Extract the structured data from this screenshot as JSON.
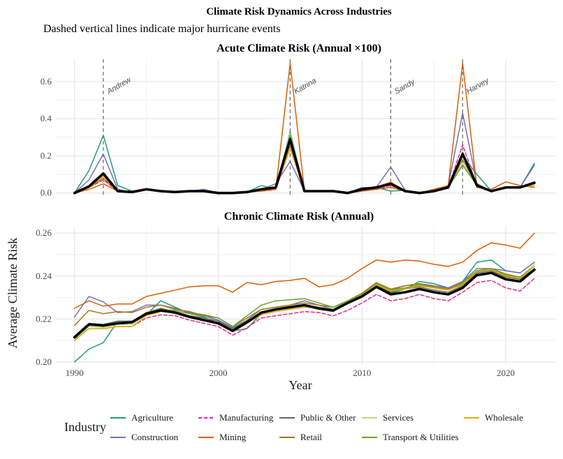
{
  "header": {
    "title": "Climate Risk Dynamics Across Industries",
    "subtitle": "Dashed vertical lines indicate major hurricane events"
  },
  "xlabel": "Year",
  "ylabel": "Average Climate Risk",
  "legend": {
    "title": "Industry",
    "placement": "bottom"
  },
  "chart_data": [
    {
      "type": "line",
      "title": "Acute Climate Risk (Annual ×100)",
      "x": [
        1990,
        1991,
        1992,
        1993,
        1994,
        1995,
        1996,
        1997,
        1998,
        1999,
        2000,
        2001,
        2002,
        2003,
        2004,
        2005,
        2006,
        2007,
        2008,
        2009,
        2010,
        2011,
        2012,
        2013,
        2014,
        2015,
        2016,
        2017,
        2018,
        2019,
        2020,
        2021,
        2022
      ],
      "xlim": [
        1988.7,
        2023.5
      ],
      "ylim": [
        -0.02,
        0.72
      ],
      "yticks": [
        0.0,
        0.2,
        0.4,
        0.6
      ],
      "ytick_labels": [
        "0.0",
        "0.2",
        "0.4",
        "0.6"
      ],
      "grid": true,
      "events": [
        {
          "year": 1992,
          "label": "Andrew"
        },
        {
          "year": 2005,
          "label": "Katrina"
        },
        {
          "year": 2012,
          "label": "Sandy"
        },
        {
          "year": 2017,
          "label": "Harvey"
        }
      ],
      "series": [
        {
          "name": "Agriculture",
          "color": "#1b9e77",
          "dashed": false,
          "values": [
            0,
            0.12,
            0.31,
            0.04,
            0.01,
            0.02,
            0.01,
            0.005,
            0.01,
            0.015,
            0,
            0,
            0.005,
            0.04,
            0.02,
            0.33,
            0.01,
            0.01,
            0.01,
            0,
            0.01,
            0.03,
            0.01,
            0.015,
            0,
            0.01,
            0.03,
            0.2,
            0.1,
            0.01,
            0.03,
            0.03,
            0.16
          ]
        },
        {
          "name": "Construction",
          "color": "#7570b3",
          "dashed": false,
          "values": [
            0,
            0.07,
            0.21,
            0.02,
            0.005,
            0.02,
            0.01,
            0.005,
            0.01,
            0.02,
            0,
            0,
            0.005,
            0.02,
            0.05,
            0.17,
            0.01,
            0.01,
            0.01,
            0,
            0.03,
            0.03,
            0.14,
            0.015,
            0,
            0.01,
            0.04,
            0.43,
            0.05,
            0.01,
            0.03,
            0.03,
            0.15
          ]
        },
        {
          "name": "Manufacturing",
          "color": "#e7298a",
          "dashed": true,
          "values": [
            0,
            0.03,
            0.07,
            0.01,
            0.005,
            0.02,
            0.01,
            0.005,
            0.01,
            0.01,
            0,
            0,
            0.005,
            0.01,
            0.02,
            0.24,
            0.01,
            0.01,
            0.01,
            0,
            0.01,
            0.02,
            0.04,
            0.01,
            0,
            0.01,
            0.03,
            0.26,
            0.04,
            0.01,
            0.03,
            0.03,
            0.05
          ]
        },
        {
          "name": "Mining",
          "color": "#d95f02",
          "dashed": false,
          "values": [
            0,
            0.02,
            0.05,
            0.01,
            0.005,
            0.02,
            0.01,
            0.005,
            0.01,
            0.01,
            0,
            0,
            0.005,
            0.01,
            0.02,
            0.7,
            0.01,
            0.01,
            0.01,
            0,
            0.01,
            0.02,
            0.03,
            0.01,
            0,
            0.02,
            0.04,
            0.7,
            0.03,
            0.02,
            0.06,
            0.04,
            0.03
          ]
        },
        {
          "name": "Public & Other",
          "color": "#666666",
          "dashed": false,
          "values": [
            0,
            0.04,
            0.1,
            0.01,
            0.005,
            0.02,
            0.01,
            0.005,
            0.01,
            0.01,
            0,
            0,
            0.005,
            0.02,
            0.03,
            0.3,
            0.01,
            0.01,
            0.01,
            0,
            0.02,
            0.03,
            0.06,
            0.01,
            0,
            0.01,
            0.03,
            0.22,
            0.05,
            0.01,
            0.03,
            0.03,
            0.06
          ]
        },
        {
          "name": "Retail",
          "color": "#a6761d",
          "dashed": false,
          "values": [
            0,
            0.03,
            0.08,
            0.01,
            0.005,
            0.02,
            0.01,
            0.005,
            0.01,
            0.01,
            0,
            0,
            0.005,
            0.02,
            0.03,
            0.26,
            0.01,
            0.01,
            0.01,
            0,
            0.02,
            0.03,
            0.05,
            0.01,
            0,
            0.01,
            0.03,
            0.18,
            0.04,
            0.01,
            0.03,
            0.03,
            0.05
          ]
        },
        {
          "name": "Services",
          "color": "#b2df8a",
          "dashed": false,
          "values": [
            0,
            0.04,
            0.1,
            0.01,
            0.005,
            0.02,
            0.01,
            0.005,
            0.01,
            0.01,
            0,
            0,
            0.005,
            0.02,
            0.03,
            0.32,
            0.01,
            0.01,
            0.01,
            0,
            0.02,
            0.03,
            0.05,
            0.01,
            0,
            0.01,
            0.03,
            0.16,
            0.04,
            0.01,
            0.03,
            0.03,
            0.05
          ]
        },
        {
          "name": "Transport & Utilities",
          "color": "#66a61e",
          "dashed": false,
          "values": [
            0,
            0.04,
            0.11,
            0.01,
            0.005,
            0.02,
            0.01,
            0.005,
            0.01,
            0.01,
            0,
            0,
            0.005,
            0.02,
            0.03,
            0.31,
            0.01,
            0.01,
            0.01,
            0,
            0.02,
            0.03,
            0.05,
            0.01,
            0,
            0.01,
            0.03,
            0.15,
            0.04,
            0.01,
            0.03,
            0.03,
            0.05
          ]
        },
        {
          "name": "Wholesale",
          "color": "#e6ab02",
          "dashed": false,
          "values": [
            0,
            0.03,
            0.09,
            0.01,
            0.005,
            0.02,
            0.01,
            0.005,
            0.01,
            0.01,
            0,
            0,
            0.005,
            0.02,
            0.03,
            0.24,
            0.01,
            0.01,
            0.01,
            0,
            0.02,
            0.03,
            0.06,
            0.01,
            0,
            0.01,
            0.03,
            0.2,
            0.04,
            0.01,
            0.03,
            0.03,
            0.04
          ]
        },
        {
          "name": "",
          "color": "#000000",
          "dashed": false,
          "mean": true,
          "values": [
            0,
            0.035,
            0.105,
            0.01,
            0.005,
            0.02,
            0.01,
            0.005,
            0.01,
            0.01,
            0,
            0,
            0.005,
            0.02,
            0.03,
            0.29,
            0.01,
            0.01,
            0.01,
            0,
            0.02,
            0.03,
            0.05,
            0.01,
            0,
            0.01,
            0.03,
            0.21,
            0.04,
            0.01,
            0.03,
            0.03,
            0.055
          ]
        }
      ]
    },
    {
      "type": "line",
      "title": "Chronic Climate Risk (Annual)",
      "x": [
        1990,
        1991,
        1992,
        1993,
        1994,
        1995,
        1996,
        1997,
        1998,
        1999,
        2000,
        2001,
        2002,
        2003,
        2004,
        2005,
        2006,
        2007,
        2008,
        2009,
        2010,
        2011,
        2012,
        2013,
        2014,
        2015,
        2016,
        2017,
        2018,
        2019,
        2020,
        2021,
        2022
      ],
      "xlim": [
        1988.7,
        2023.5
      ],
      "ylim": [
        0.199,
        0.263
      ],
      "yticks": [
        0.2,
        0.22,
        0.24,
        0.26
      ],
      "ytick_labels": [
        "0.20",
        "0.22",
        "0.24",
        "0.26"
      ],
      "xticks": [
        1990,
        2000,
        2010,
        2020
      ],
      "xtick_labels": [
        "1990",
        "2000",
        "2010",
        "2020"
      ],
      "grid": true,
      "series": [
        {
          "name": "Agriculture",
          "color": "#1b9e77",
          "dashed": false,
          "values": [
            0.2,
            0.206,
            0.209,
            0.219,
            0.219,
            0.222,
            0.2285,
            0.2255,
            0.2225,
            0.221,
            0.218,
            0.2145,
            0.2155,
            0.2225,
            0.2245,
            0.225,
            0.226,
            0.2245,
            0.2235,
            0.228,
            0.231,
            0.236,
            0.232,
            0.234,
            0.2375,
            0.2365,
            0.2345,
            0.2375,
            0.2465,
            0.2475,
            0.2425,
            0.2415,
            0.2465
          ]
        },
        {
          "name": "Construction",
          "color": "#7570b3",
          "dashed": false,
          "values": [
            0.221,
            0.2305,
            0.228,
            0.223,
            0.2235,
            0.2265,
            0.2265,
            0.2245,
            0.2235,
            0.2215,
            0.2195,
            0.216,
            0.2195,
            0.2245,
            0.2255,
            0.2265,
            0.2285,
            0.2265,
            0.2245,
            0.2285,
            0.2315,
            0.2365,
            0.2335,
            0.2355,
            0.2365,
            0.2355,
            0.2345,
            0.2375,
            0.2435,
            0.2435,
            0.2425,
            0.2415,
            0.2465
          ]
        },
        {
          "name": "Manufacturing",
          "color": "#e7298a",
          "dashed": true,
          "values": [
            0.211,
            0.2155,
            0.2155,
            0.2165,
            0.2165,
            0.2205,
            0.222,
            0.2215,
            0.2195,
            0.218,
            0.2165,
            0.2125,
            0.216,
            0.2205,
            0.2215,
            0.2225,
            0.2235,
            0.223,
            0.2215,
            0.224,
            0.2275,
            0.2315,
            0.2285,
            0.2295,
            0.2315,
            0.2295,
            0.2285,
            0.2325,
            0.237,
            0.238,
            0.2345,
            0.233,
            0.239
          ]
        },
        {
          "name": "Mining",
          "color": "#d95f02",
          "dashed": false,
          "values": [
            0.225,
            0.2285,
            0.226,
            0.227,
            0.227,
            0.2305,
            0.232,
            0.2335,
            0.235,
            0.2355,
            0.2355,
            0.2325,
            0.237,
            0.236,
            0.2375,
            0.238,
            0.239,
            0.235,
            0.236,
            0.239,
            0.2435,
            0.2475,
            0.2465,
            0.2475,
            0.247,
            0.2455,
            0.2445,
            0.2465,
            0.252,
            0.2555,
            0.2545,
            0.253,
            0.26
          ]
        },
        {
          "name": "Public & Other",
          "color": "#666666",
          "dashed": false,
          "values": [
            0.212,
            0.218,
            0.2175,
            0.219,
            0.219,
            0.223,
            0.225,
            0.2235,
            0.2215,
            0.2205,
            0.219,
            0.2155,
            0.219,
            0.223,
            0.2245,
            0.2255,
            0.2265,
            0.2255,
            0.2245,
            0.2275,
            0.2305,
            0.2355,
            0.2325,
            0.234,
            0.235,
            0.2335,
            0.2325,
            0.2355,
            0.2415,
            0.2425,
            0.2395,
            0.2385,
            0.2435
          ]
        },
        {
          "name": "Retail",
          "color": "#a6761d",
          "dashed": false,
          "values": [
            0.217,
            0.224,
            0.2225,
            0.2235,
            0.223,
            0.2255,
            0.2265,
            0.225,
            0.223,
            0.222,
            0.2205,
            0.2165,
            0.2205,
            0.2245,
            0.2255,
            0.2265,
            0.2275,
            0.2265,
            0.2255,
            0.2285,
            0.232,
            0.237,
            0.234,
            0.2355,
            0.2365,
            0.235,
            0.234,
            0.237,
            0.2425,
            0.2435,
            0.241,
            0.2395,
            0.2445
          ]
        },
        {
          "name": "Services",
          "color": "#b2df8a",
          "dashed": false,
          "values": [
            0.21,
            0.2165,
            0.216,
            0.2175,
            0.2175,
            0.222,
            0.224,
            0.2235,
            0.221,
            0.2195,
            0.218,
            0.2145,
            0.2185,
            0.2225,
            0.224,
            0.225,
            0.226,
            0.2255,
            0.2245,
            0.228,
            0.2315,
            0.2365,
            0.2335,
            0.2345,
            0.236,
            0.2345,
            0.2335,
            0.2365,
            0.2425,
            0.2435,
            0.2405,
            0.2395,
            0.2455
          ]
        },
        {
          "name": "Transport & Utilities",
          "color": "#66a61e",
          "dashed": false,
          "values": [
            0.211,
            0.2175,
            0.2165,
            0.2185,
            0.2185,
            0.223,
            0.2245,
            0.224,
            0.2225,
            0.2215,
            0.2205,
            0.2165,
            0.2215,
            0.2265,
            0.2285,
            0.229,
            0.2295,
            0.2275,
            0.2255,
            0.2285,
            0.2315,
            0.2365,
            0.2335,
            0.2345,
            0.236,
            0.2345,
            0.2335,
            0.2365,
            0.2425,
            0.2435,
            0.2405,
            0.2395,
            0.2445
          ]
        },
        {
          "name": "Wholesale",
          "color": "#e6ab02",
          "dashed": false,
          "values": [
            0.21,
            0.2155,
            0.2155,
            0.2165,
            0.2165,
            0.2215,
            0.2235,
            0.223,
            0.221,
            0.2195,
            0.218,
            0.214,
            0.218,
            0.222,
            0.2235,
            0.2245,
            0.2255,
            0.225,
            0.224,
            0.2275,
            0.231,
            0.236,
            0.233,
            0.234,
            0.2355,
            0.2345,
            0.2335,
            0.236,
            0.242,
            0.243,
            0.24,
            0.239,
            0.2445
          ]
        },
        {
          "name": "",
          "color": "#000000",
          "dashed": false,
          "mean": true,
          "values": [
            0.2115,
            0.2175,
            0.217,
            0.218,
            0.2185,
            0.2225,
            0.224,
            0.223,
            0.221,
            0.2195,
            0.218,
            0.2145,
            0.2185,
            0.223,
            0.2245,
            0.2255,
            0.2265,
            0.225,
            0.224,
            0.2275,
            0.2305,
            0.235,
            0.2315,
            0.2325,
            0.234,
            0.2325,
            0.2315,
            0.2345,
            0.2405,
            0.2415,
            0.2385,
            0.2375,
            0.243
          ]
        }
      ]
    }
  ]
}
